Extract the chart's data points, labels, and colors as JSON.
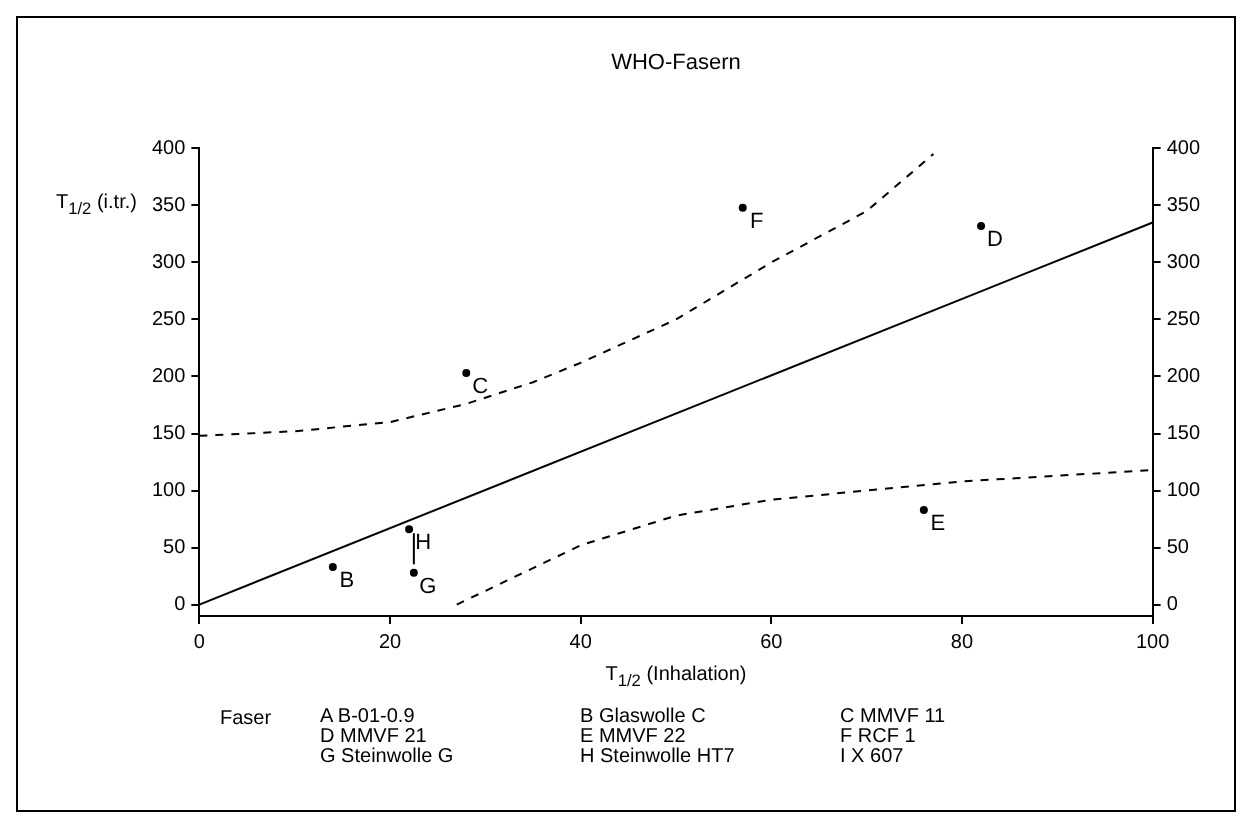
{
  "chart_data": {
    "type": "line",
    "title": "WHO-Fasern",
    "xlabel": "T$_{1/2}$ (Inhalation)",
    "ylabel": "T$_{1/2}$ (i.tr.)",
    "xlim": [
      0,
      100
    ],
    "xticks": [
      0,
      20,
      40,
      60,
      80,
      100
    ],
    "ylim": [
      -10,
      400
    ],
    "yticks": [
      0,
      50,
      100,
      150,
      200,
      250,
      300,
      350,
      400
    ],
    "y2lim": [
      -10,
      400
    ],
    "y2ticks": [
      0,
      50,
      100,
      150,
      200,
      250,
      300,
      350,
      400
    ],
    "grid": false,
    "legend": false,
    "marker": "none",
    "series": [
      {
        "x": [
          0,
          100
        ],
        "values": [
          0,
          335
        ],
        "color": "#000000",
        "line_style": "solid"
      },
      {
        "x": [
          0,
          10,
          20,
          28,
          35,
          40,
          50,
          60,
          70,
          77
        ],
        "values": [
          148,
          152,
          160,
          176,
          195,
          212,
          250,
          300,
          345,
          395
        ],
        "color": "#000000",
        "line_style": "dashed"
      },
      {
        "x": [
          27,
          40,
          50,
          60,
          70,
          80,
          90,
          100
        ],
        "values": [
          0,
          52,
          78,
          92,
          100,
          108,
          113,
          118
        ],
        "color": "#000000",
        "line_style": "dashed"
      },
      {
        "x": [
          22.5,
          22.5
        ],
        "values": [
          62,
          36
        ],
        "color": "#000000",
        "line_style": "solid"
      },
      {
        "type": "scatter",
        "x": [
          14,
          22,
          22.5,
          28,
          57,
          82,
          76
        ],
        "values": [
          33,
          66,
          28,
          203,
          348,
          332,
          83
        ],
        "value_labels": [
          "B",
          "H",
          "G",
          "C",
          "F",
          "D",
          "E"
        ],
        "color": "#000000",
        "marker": "circle"
      }
    ],
    "annotations": [
      "Faser",
      "A B-01-0.9",
      "B Glaswolle C",
      "C MMVF 11",
      "D MMVF 21",
      "E MMVF 22",
      "F RCF 1",
      "G Steinwolle G",
      "H Steinwolle HT7",
      "I X 607"
    ]
  }
}
